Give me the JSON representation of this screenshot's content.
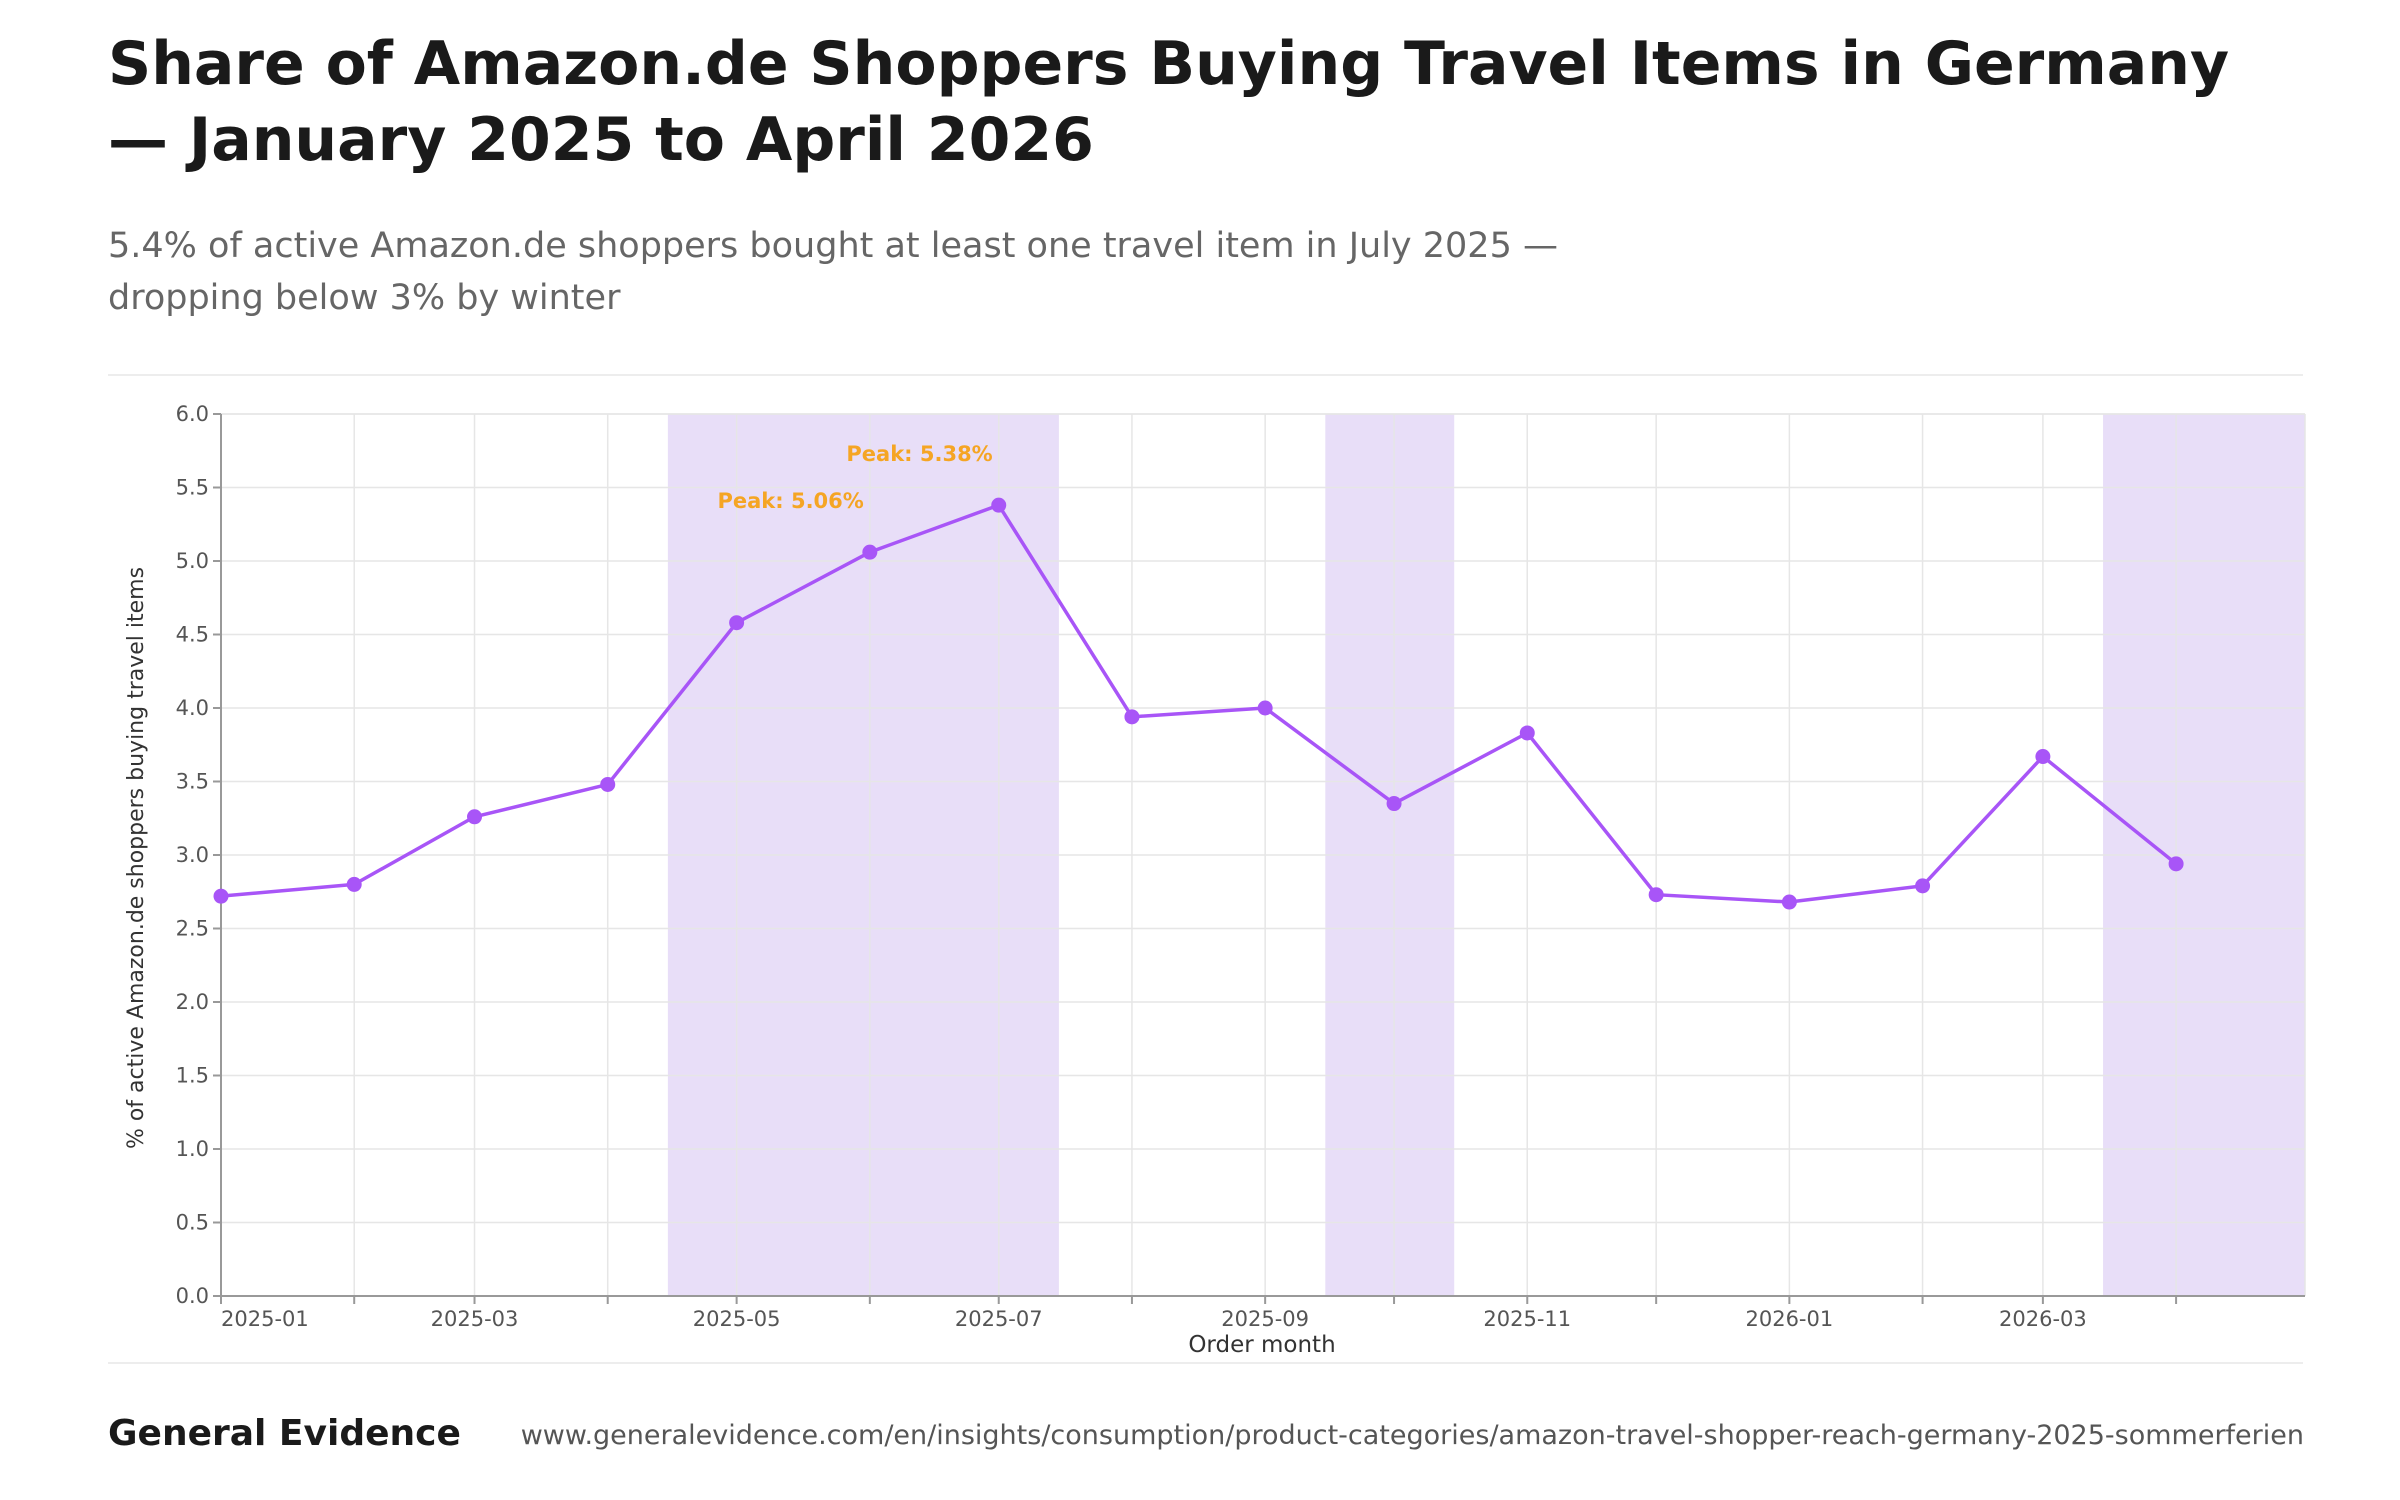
{
  "header": {
    "title": "Share of Amazon.de Shoppers Buying Travel Items in Germany — January 2025 to April 2026",
    "subtitle": "5.4% of active Amazon.de shoppers bought at least one travel item in July 2025 — dropping below 3% by winter"
  },
  "footer": {
    "brand": "General Evidence",
    "url": "www.generalevidence.com/en/insights/consumption/product-categories/amazon-travel-shopper-reach-germany-2025-sommerferien"
  },
  "chart_data": {
    "type": "line",
    "xlabel": "Order month",
    "ylabel": "% of active Amazon.de shoppers buying travel items",
    "ylim": [
      0,
      6
    ],
    "yticks": [
      "0.0",
      "0.5",
      "1.0",
      "1.5",
      "2.0",
      "2.5",
      "3.0",
      "3.5",
      "4.0",
      "4.5",
      "5.0",
      "5.5",
      "6.0"
    ],
    "xlim": [
      "2025-01",
      "2026-05"
    ],
    "xtick_labels": [
      "2025-01",
      "2025-03",
      "2025-05",
      "2025-07",
      "2025-09",
      "2025-11",
      "2026-01",
      "2026-03"
    ],
    "grid": true,
    "x": [
      "2025-01",
      "2025-02",
      "2025-03",
      "2025-04",
      "2025-05",
      "2025-06",
      "2025-07",
      "2025-08",
      "2025-09",
      "2025-10",
      "2025-11",
      "2025-12",
      "2026-01",
      "2026-02",
      "2026-03",
      "2026-04"
    ],
    "series": [
      {
        "values": [
          2.72,
          2.8,
          3.26,
          3.48,
          4.58,
          5.06,
          5.38,
          3.94,
          4.0,
          3.35,
          3.83,
          2.73,
          2.68,
          2.79,
          3.67,
          2.94
        ]
      }
    ],
    "highlight_periods": [
      {
        "start": "2025-04-15",
        "end": "2025-07-15"
      },
      {
        "start": "2025-09-15",
        "end": "2025-10-15"
      },
      {
        "start": "2026-03-15",
        "end": "2026-05-01"
      }
    ],
    "annotations": [
      {
        "x": "2025-06",
        "y": 5.06,
        "text": "Peak: 5.06%"
      },
      {
        "x": "2025-07",
        "y": 5.38,
        "text": "Peak: 5.38%"
      }
    ],
    "colors": {
      "line": "#a855f7",
      "band": "#e8def8",
      "annotation": "#f5a524",
      "grid": "#e6e6e6",
      "axis": "#999999",
      "tick_text": "#555555"
    }
  }
}
